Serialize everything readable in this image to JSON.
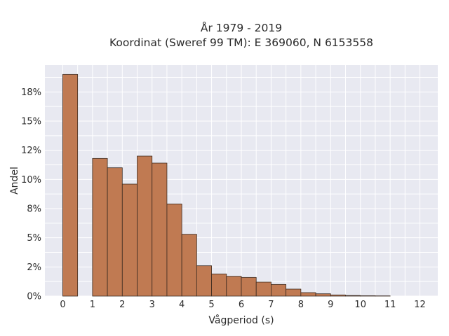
{
  "chart_data": {
    "type": "bar",
    "title": "År 1979 - 2019",
    "subtitle": "Koordinat (Sweref 99 TM): E 369060, N 6153558",
    "xlabel": "Vågperiod (s)",
    "ylabel": "Andel",
    "xlim": [
      -0.6,
      12.6
    ],
    "ylim": [
      0,
      0.198
    ],
    "x_ticks": [
      0,
      1,
      2,
      3,
      4,
      5,
      6,
      7,
      8,
      9,
      10,
      11,
      12
    ],
    "y_ticks": [
      0,
      0.025,
      0.05,
      0.075,
      0.1,
      0.125,
      0.15,
      0.175
    ],
    "y_tick_labels": [
      "0%",
      "2%",
      "5%",
      "8%",
      "10%",
      "12%",
      "15%",
      "18%"
    ],
    "grid": true,
    "bar_width": 0.5,
    "bins_start": [
      0,
      1,
      1.5,
      2,
      2.5,
      3,
      3.5,
      4,
      4.5,
      5,
      5.5,
      6,
      6.5,
      7,
      7.5,
      8,
      8.5,
      9,
      9.5,
      10,
      10.5
    ],
    "values": [
      0.19,
      0.118,
      0.11,
      0.096,
      0.12,
      0.114,
      0.079,
      0.053,
      0.026,
      0.019,
      0.017,
      0.016,
      0.012,
      0.01,
      0.006,
      0.003,
      0.002,
      0.001,
      0.0005,
      0.0003,
      0.0002
    ],
    "colors": {
      "bar_fill": "#c07a52",
      "bar_edge": "#3a2a20",
      "plot_background": "#e8e9f1",
      "grid": "#ffffff"
    }
  }
}
